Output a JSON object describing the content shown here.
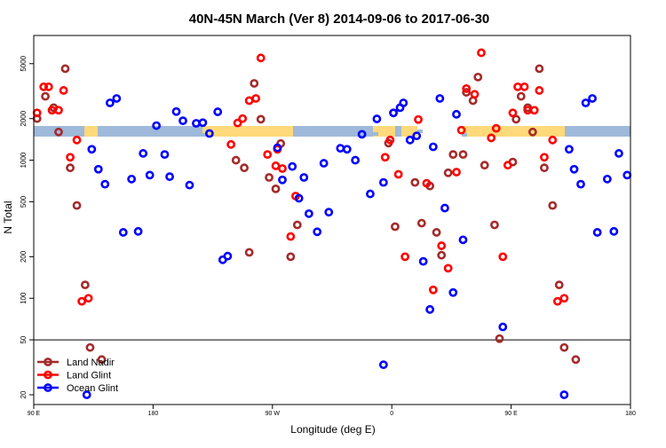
{
  "chart_data": {
    "type": "scatter",
    "title": "40N-45N March (Ver 8)   2014-09-06 to 2017-06-30",
    "xlabel": "Longitude (deg E)",
    "ylabel": "N Total",
    "xlim": [
      0,
      360
    ],
    "ylim": [
      17,
      8000
    ],
    "yscale": "log",
    "y_reference_line": 50,
    "xticks": [
      {
        "value": 0,
        "label": "90 E"
      },
      {
        "value": 72,
        "label": "180"
      },
      {
        "value": 144,
        "label": "90 W"
      },
      {
        "value": 216,
        "label": "0"
      },
      {
        "value": 288,
        "label": "90 E"
      },
      {
        "value": 360,
        "label": "180"
      }
    ],
    "yticks": [
      20,
      50,
      100,
      200,
      500,
      1000,
      2000,
      5000
    ],
    "legend_position": "bottom-left",
    "legend": [
      "Land Nadir",
      "Land Glint",
      "Ocean Glint"
    ],
    "colors": {
      "Land Nadir": "#a52a2a",
      "Land Glint": "#ff0000",
      "Ocean Glint": "#0000ff",
      "land_band": "#ffd97a",
      "ocean_band": "#9eb9d9"
    },
    "series": [
      {
        "name": "Land Nadir",
        "points": [
          [
            2,
            2000
          ],
          [
            7,
            2900
          ],
          [
            12,
            2400
          ],
          [
            15,
            1600
          ],
          [
            19,
            4600
          ],
          [
            22,
            880
          ],
          [
            26,
            470
          ],
          [
            31,
            125
          ],
          [
            34,
            44
          ],
          [
            41,
            36
          ],
          [
            122,
            1000
          ],
          [
            127,
            880
          ],
          [
            130,
            215
          ],
          [
            133,
            3600
          ],
          [
            137,
            1980
          ],
          [
            142,
            750
          ],
          [
            146,
            620
          ],
          [
            149,
            1320
          ],
          [
            155,
            200
          ],
          [
            159,
            340
          ],
          [
            214,
            1330
          ],
          [
            217,
            2200
          ],
          [
            218,
            330
          ],
          [
            230,
            690
          ],
          [
            234,
            350
          ],
          [
            239,
            650
          ],
          [
            243,
            300
          ],
          [
            246,
            205
          ],
          [
            250,
            810
          ],
          [
            253,
            1100
          ],
          [
            259,
            1100
          ],
          [
            261,
            3100
          ],
          [
            265,
            2700
          ],
          [
            268,
            4000
          ],
          [
            272,
            920
          ],
          [
            278,
            340
          ],
          [
            281,
            51
          ],
          [
            289,
            970
          ],
          [
            291,
            1980
          ],
          [
            294,
            2900
          ],
          [
            298,
            2400
          ],
          [
            301,
            1600
          ],
          [
            305,
            4600
          ],
          [
            308,
            880
          ],
          [
            313,
            470
          ],
          [
            317,
            125
          ],
          [
            320,
            44
          ],
          [
            327,
            36
          ]
        ]
      },
      {
        "name": "Land Glint",
        "points": [
          [
            2,
            2200
          ],
          [
            6,
            3400
          ],
          [
            9,
            3400
          ],
          [
            11,
            2300
          ],
          [
            15,
            2300
          ],
          [
            18,
            3200
          ],
          [
            22,
            1050
          ],
          [
            26,
            1400
          ],
          [
            29,
            95
          ],
          [
            33,
            100
          ],
          [
            119,
            1300
          ],
          [
            123,
            1860
          ],
          [
            126,
            2000
          ],
          [
            130,
            2700
          ],
          [
            134,
            2800
          ],
          [
            137,
            5500
          ],
          [
            141,
            1100
          ],
          [
            147,
            1200
          ],
          [
            146,
            910
          ],
          [
            150,
            870
          ],
          [
            155,
            280
          ],
          [
            158,
            550
          ],
          [
            212,
            1050
          ],
          [
            215,
            1400
          ],
          [
            220,
            790
          ],
          [
            224,
            200
          ],
          [
            232,
            1970
          ],
          [
            237,
            680
          ],
          [
            241,
            115
          ],
          [
            246,
            240
          ],
          [
            250,
            165
          ],
          [
            255,
            820
          ],
          [
            258,
            1650
          ],
          [
            261,
            3300
          ],
          [
            266,
            3000
          ],
          [
            270,
            6000
          ],
          [
            276,
            1450
          ],
          [
            279,
            1700
          ],
          [
            283,
            200
          ],
          [
            286,
            920
          ],
          [
            289,
            2200
          ],
          [
            292,
            3400
          ],
          [
            296,
            3400
          ],
          [
            298,
            2300
          ],
          [
            302,
            2300
          ],
          [
            305,
            3200
          ],
          [
            308,
            1050
          ],
          [
            313,
            1400
          ],
          [
            316,
            95
          ],
          [
            320,
            100
          ]
        ]
      },
      {
        "name": "Ocean Glint",
        "points": [
          [
            32,
            20
          ],
          [
            35,
            1200
          ],
          [
            39,
            860
          ],
          [
            43,
            670
          ],
          [
            46,
            2600
          ],
          [
            50,
            2800
          ],
          [
            54,
            300
          ],
          [
            59,
            730
          ],
          [
            63,
            305
          ],
          [
            66,
            1120
          ],
          [
            70,
            780
          ],
          [
            74,
            1780
          ],
          [
            79,
            1100
          ],
          [
            82,
            760
          ],
          [
            86,
            2250
          ],
          [
            90,
            1930
          ],
          [
            94,
            660
          ],
          [
            98,
            1850
          ],
          [
            102,
            1870
          ],
          [
            106,
            1560
          ],
          [
            111,
            2240
          ],
          [
            114,
            190
          ],
          [
            117,
            202
          ],
          [
            147,
            1230
          ],
          [
            150,
            720
          ],
          [
            156,
            900
          ],
          [
            160,
            530
          ],
          [
            163,
            750
          ],
          [
            166,
            410
          ],
          [
            171,
            303
          ],
          [
            175,
            950
          ],
          [
            178,
            420
          ],
          [
            185,
            1220
          ],
          [
            189,
            1200
          ],
          [
            194,
            1000
          ],
          [
            198,
            1540
          ],
          [
            203,
            570
          ],
          [
            207,
            1990
          ],
          [
            211,
            690
          ],
          [
            211,
            33
          ],
          [
            217,
            2200
          ],
          [
            221,
            2400
          ],
          [
            223,
            2600
          ],
          [
            227,
            1400
          ],
          [
            231,
            1500
          ],
          [
            235,
            185
          ],
          [
            239,
            83
          ],
          [
            241,
            1250
          ],
          [
            245,
            2800
          ],
          [
            248,
            450
          ],
          [
            253,
            110
          ],
          [
            255,
            2150
          ],
          [
            259,
            265
          ],
          [
            283,
            62
          ],
          [
            320,
            20
          ],
          [
            323,
            1200
          ],
          [
            326,
            860
          ],
          [
            330,
            670
          ],
          [
            333,
            2600
          ],
          [
            337,
            2800
          ],
          [
            340,
            300
          ],
          [
            346,
            730
          ],
          [
            350,
            305
          ],
          [
            353,
            1120
          ],
          [
            358,
            780
          ]
        ]
      }
    ]
  }
}
